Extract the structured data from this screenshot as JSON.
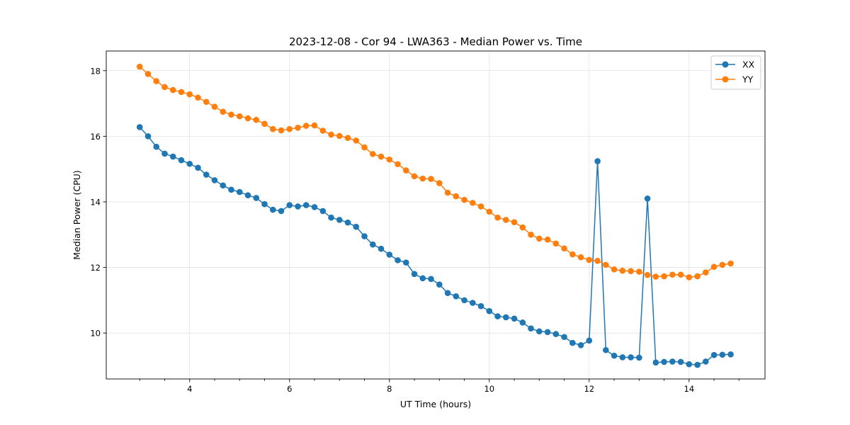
{
  "chart_data": {
    "type": "line",
    "title": "2023-12-08 - Cor 94 - LWA363 - Median Power vs. Time",
    "xlabel": "UT Time (hours)",
    "ylabel": "Median Power (CPU)",
    "xlim": [
      2.33,
      15.52
    ],
    "ylim": [
      8.6,
      18.6
    ],
    "grid": true,
    "legend_position": "top-right",
    "x_ticks": [
      4,
      6,
      8,
      10,
      12,
      14
    ],
    "y_ticks": [
      10,
      12,
      14,
      16,
      18
    ],
    "x_tick_labels": [
      "4",
      "6",
      "8",
      "10",
      "12",
      "14"
    ],
    "y_tick_labels": [
      "10",
      "12",
      "14",
      "16",
      "18"
    ],
    "x": [
      3.0,
      3.167,
      3.333,
      3.5,
      3.667,
      3.833,
      4.0,
      4.167,
      4.333,
      4.5,
      4.667,
      4.833,
      5.0,
      5.167,
      5.333,
      5.5,
      5.667,
      5.833,
      6.0,
      6.167,
      6.333,
      6.5,
      6.667,
      6.833,
      7.0,
      7.167,
      7.333,
      7.5,
      7.667,
      7.833,
      8.0,
      8.167,
      8.333,
      8.5,
      8.667,
      8.833,
      9.0,
      9.167,
      9.333,
      9.5,
      9.667,
      9.833,
      10.0,
      10.167,
      10.333,
      10.5,
      10.667,
      10.833,
      11.0,
      11.167,
      11.333,
      11.5,
      11.667,
      11.833,
      12.0,
      12.167,
      12.333,
      12.5,
      12.667,
      12.833,
      13.0,
      13.167,
      13.333,
      13.5,
      13.667,
      13.833,
      14.0,
      14.167,
      14.333,
      14.5,
      14.667,
      14.833
    ],
    "series": [
      {
        "name": "XX",
        "color": "#1f77b4",
        "values": [
          16.28,
          16.0,
          15.68,
          15.47,
          15.38,
          15.27,
          15.16,
          15.04,
          14.83,
          14.66,
          14.5,
          14.37,
          14.3,
          14.2,
          14.12,
          13.93,
          13.76,
          13.72,
          13.9,
          13.86,
          13.9,
          13.84,
          13.72,
          13.52,
          13.45,
          13.37,
          13.24,
          12.95,
          12.7,
          12.57,
          12.39,
          12.22,
          12.15,
          11.8,
          11.67,
          11.65,
          11.48,
          11.22,
          11.12,
          11.0,
          10.92,
          10.82,
          10.67,
          10.51,
          10.48,
          10.44,
          10.32,
          10.14,
          10.05,
          10.03,
          9.97,
          9.88,
          9.7,
          9.63,
          9.77,
          15.24,
          9.48,
          9.31,
          9.26,
          9.26,
          9.25,
          14.1,
          9.1,
          9.12,
          9.13,
          9.12,
          9.05,
          9.03,
          9.13,
          9.33,
          9.34,
          9.35
        ]
      },
      {
        "name": "YY",
        "color": "#ff7f0e",
        "values": [
          18.12,
          17.9,
          17.68,
          17.5,
          17.41,
          17.35,
          17.28,
          17.18,
          17.05,
          16.9,
          16.75,
          16.66,
          16.61,
          16.55,
          16.5,
          16.38,
          16.22,
          16.18,
          16.22,
          16.26,
          16.32,
          16.33,
          16.17,
          16.05,
          16.01,
          15.95,
          15.87,
          15.66,
          15.46,
          15.38,
          15.29,
          15.15,
          14.96,
          14.78,
          14.71,
          14.7,
          14.57,
          14.28,
          14.17,
          14.06,
          13.97,
          13.86,
          13.7,
          13.52,
          13.45,
          13.38,
          13.22,
          13.0,
          12.88,
          12.85,
          12.73,
          12.58,
          12.4,
          12.31,
          12.23,
          12.2,
          12.08,
          11.94,
          11.9,
          11.89,
          11.87,
          11.77,
          11.72,
          11.73,
          11.78,
          11.78,
          11.7,
          11.73,
          11.85,
          12.02,
          12.08,
          12.12
        ]
      }
    ]
  }
}
